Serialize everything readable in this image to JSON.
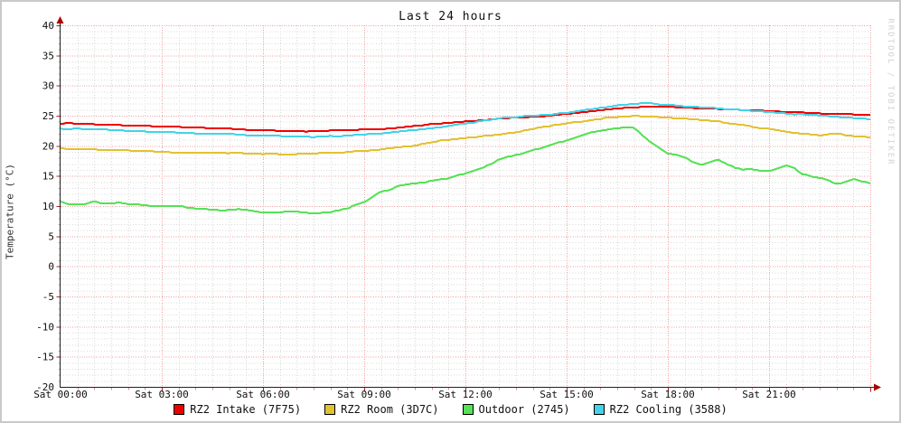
{
  "watermark": "RRDTOOL / TOBI OETIKER",
  "colors": {
    "background": "#ffffff",
    "border": "#c9c9c9",
    "grid_minor": "#d8d8d8",
    "grid_major": "#f09e9e",
    "axis": "#222222",
    "arrow": "#aa0000",
    "tick_major": "#b22222",
    "tick_minor": "#dd9090",
    "text": "#101010",
    "watermark_text": "#d2d2d2"
  },
  "chart_data": {
    "type": "line",
    "title": "Last 24 hours",
    "xlabel": "",
    "ylabel": "Temperature (°C)",
    "ylim": [
      -20,
      40
    ],
    "y_major_step": 5,
    "y_minor_step": 1,
    "y_tick_labels": [
      "40",
      "35",
      "30",
      "25",
      "20",
      "15",
      "10",
      "5",
      "0",
      "-5",
      "-10",
      "-15",
      "-20"
    ],
    "x_range_hours": [
      0,
      24
    ],
    "x_major_step_hours": 3,
    "x_minor_step_hours": 0.5,
    "x_ticks": [
      {
        "h": 0,
        "label": "Sat 00:00"
      },
      {
        "h": 3,
        "label": "Sat 03:00"
      },
      {
        "h": 6,
        "label": "Sat 06:00"
      },
      {
        "h": 9,
        "label": "Sat 09:00"
      },
      {
        "h": 12,
        "label": "Sat 12:00"
      },
      {
        "h": 15,
        "label": "Sat 15:00"
      },
      {
        "h": 18,
        "label": "Sat 18:00"
      },
      {
        "h": 21,
        "label": "Sat 21:00"
      }
    ],
    "grid": true,
    "legend_position": "bottom-center",
    "sample_interval_hours": 0.5,
    "series": [
      {
        "name": "RZ2 Intake (7F75)",
        "color": "#ee0000",
        "jitter": 0.07,
        "values": [
          23.7,
          23.7,
          23.6,
          23.5,
          23.4,
          23.3,
          23.2,
          23.1,
          23.0,
          22.9,
          22.8,
          22.7,
          22.6,
          22.5,
          22.4,
          22.4,
          22.5,
          22.6,
          22.7,
          22.8,
          23.0,
          23.3,
          23.6,
          23.8,
          24.0,
          24.2,
          24.5,
          24.7,
          24.8,
          25.0,
          25.3,
          25.6,
          25.9,
          26.2,
          26.4,
          26.5,
          26.5,
          26.4,
          26.2,
          26.1,
          26.0,
          25.9,
          25.8,
          25.6,
          25.5,
          25.4,
          25.3,
          25.2,
          25.1
        ]
      },
      {
        "name": "RZ2 Room (3D7C)",
        "color": "#e2c132",
        "jitter": 0.12,
        "values": [
          19.6,
          19.5,
          19.4,
          19.3,
          19.2,
          19.1,
          19.0,
          18.9,
          18.9,
          18.8,
          18.8,
          18.7,
          18.7,
          18.6,
          18.6,
          18.7,
          18.8,
          19.0,
          19.2,
          19.4,
          19.7,
          20.1,
          20.6,
          21.0,
          21.3,
          21.6,
          21.9,
          22.3,
          22.8,
          23.3,
          23.7,
          24.1,
          24.5,
          24.8,
          25.0,
          24.9,
          24.7,
          24.5,
          24.3,
          24.0,
          23.6,
          23.2,
          22.8,
          22.4,
          22.0,
          21.7,
          22.1,
          21.6,
          21.4
        ]
      },
      {
        "name": "Outdoor (2745)",
        "color": "#56e156",
        "jitter": 0.22,
        "values": [
          10.6,
          10.3,
          10.7,
          10.4,
          10.5,
          10.2,
          9.9,
          10.1,
          9.7,
          9.4,
          9.5,
          9.2,
          9.0,
          8.9,
          9.1,
          8.8,
          9.0,
          9.6,
          10.8,
          12.2,
          13.2,
          13.8,
          14.2,
          14.6,
          15.3,
          16.4,
          17.6,
          18.6,
          19.2,
          20.0,
          20.8,
          21.8,
          22.5,
          22.9,
          23.0,
          20.5,
          18.9,
          17.9,
          16.9,
          17.7,
          16.2,
          16.0,
          15.8,
          16.8,
          15.4,
          14.6,
          13.7,
          14.5,
          13.8
        ]
      },
      {
        "name": "RZ2 Cooling (3588)",
        "color": "#43d3e8",
        "jitter": 0.1,
        "values": [
          22.9,
          22.8,
          22.7,
          22.6,
          22.5,
          22.4,
          22.3,
          22.2,
          22.1,
          22.0,
          21.9,
          21.8,
          21.7,
          21.6,
          21.5,
          21.5,
          21.6,
          21.7,
          21.9,
          22.1,
          22.3,
          22.6,
          22.9,
          23.3,
          23.7,
          24.1,
          24.5,
          24.8,
          25.0,
          25.2,
          25.5,
          25.9,
          26.3,
          26.7,
          27.0,
          27.0,
          26.8,
          26.6,
          26.4,
          26.2,
          26.0,
          25.8,
          25.6,
          25.4,
          25.2,
          25.0,
          24.8,
          24.6,
          24.4
        ]
      }
    ]
  }
}
